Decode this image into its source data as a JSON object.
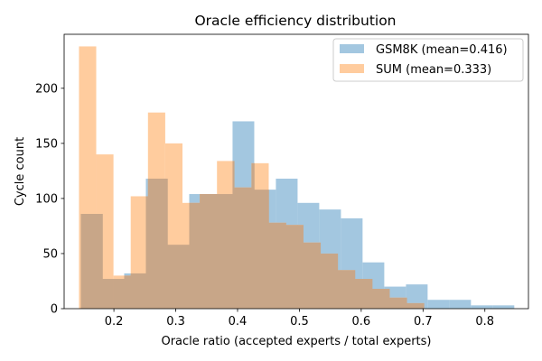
{
  "chart_data": {
    "type": "histogram",
    "title": "Oracle efficiency distribution",
    "xlabel": "Oracle ratio (accepted experts / total experts)",
    "ylabel": "Cycle count",
    "xlim": [
      0.1195,
      0.8705
    ],
    "ylim": [
      0,
      249
    ],
    "xticks": [
      "0.2",
      "0.3",
      "0.4",
      "0.5",
      "0.6",
      "0.7",
      "0.8"
    ],
    "xtick_values": [
      0.2,
      0.3,
      0.4,
      0.5,
      0.6,
      0.7,
      0.8
    ],
    "yticks": [
      "0",
      "50",
      "100",
      "150",
      "200"
    ],
    "ytick_values": [
      0,
      50,
      100,
      150,
      200
    ],
    "grid": false,
    "legend_position": "upper right",
    "overlap_color": "#c8a688",
    "series": [
      {
        "name": "GSM8K (mean=0.416)",
        "color": "#a3c7e0",
        "bins": [
          [
            0.1465,
            0.1816,
            86
          ],
          [
            0.1816,
            0.2166,
            27
          ],
          [
            0.2166,
            0.2517,
            32
          ],
          [
            0.2517,
            0.2867,
            118
          ],
          [
            0.2867,
            0.3218,
            58
          ],
          [
            0.3218,
            0.3568,
            104
          ],
          [
            0.3568,
            0.3919,
            104
          ],
          [
            0.3919,
            0.427,
            170
          ],
          [
            0.427,
            0.462,
            108
          ],
          [
            0.462,
            0.4971,
            118
          ],
          [
            0.4971,
            0.5321,
            96
          ],
          [
            0.5321,
            0.5672,
            90
          ],
          [
            0.5672,
            0.6022,
            82
          ],
          [
            0.6022,
            0.6373,
            42
          ],
          [
            0.6373,
            0.6724,
            20
          ],
          [
            0.6724,
            0.7074,
            22
          ],
          [
            0.7074,
            0.7425,
            8
          ],
          [
            0.7425,
            0.7775,
            8
          ],
          [
            0.7775,
            0.8126,
            3
          ],
          [
            0.8126,
            0.8476,
            3
          ]
        ]
      },
      {
        "name": "SUM (mean=0.333)",
        "color": "#ffcc9e",
        "bins": [
          [
            0.1435,
            0.1714,
            238
          ],
          [
            0.1714,
            0.1993,
            140
          ],
          [
            0.1993,
            0.2272,
            30
          ],
          [
            0.2272,
            0.2551,
            102
          ],
          [
            0.2551,
            0.283,
            178
          ],
          [
            0.283,
            0.3109,
            150
          ],
          [
            0.3109,
            0.3388,
            96
          ],
          [
            0.3388,
            0.3667,
            104
          ],
          [
            0.3667,
            0.3946,
            134
          ],
          [
            0.3946,
            0.4225,
            110
          ],
          [
            0.4225,
            0.4504,
            132
          ],
          [
            0.4504,
            0.4783,
            78
          ],
          [
            0.4783,
            0.5062,
            76
          ],
          [
            0.5062,
            0.5341,
            60
          ],
          [
            0.5341,
            0.562,
            50
          ],
          [
            0.562,
            0.5899,
            35
          ],
          [
            0.5899,
            0.6178,
            27
          ],
          [
            0.6178,
            0.6457,
            18
          ],
          [
            0.6457,
            0.6736,
            10
          ],
          [
            0.6736,
            0.7015,
            5
          ]
        ]
      }
    ]
  }
}
